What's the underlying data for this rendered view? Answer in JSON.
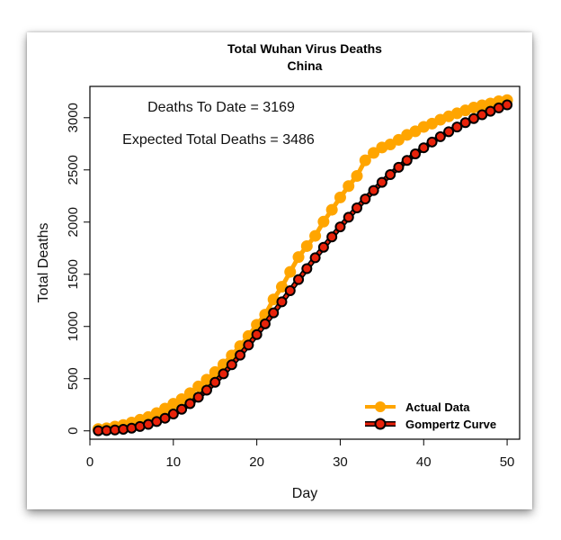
{
  "chart_data": {
    "type": "line",
    "title": "Total Wuhan Virus Deaths",
    "subtitle": "China",
    "xlabel": "Day",
    "ylabel": "Total Deaths",
    "xlim": [
      0,
      51.5
    ],
    "ylim": [
      -80,
      3300
    ],
    "xticks": [
      0,
      10,
      20,
      30,
      40,
      50
    ],
    "yticks": [
      0,
      500,
      1000,
      1500,
      2000,
      2500,
      3000
    ],
    "grid": false,
    "legend_position": "bottom-right",
    "annotations": [
      "Deaths To Date = 3169",
      "Expected Total Deaths = 3486"
    ],
    "x": [
      1,
      2,
      3,
      4,
      5,
      6,
      7,
      8,
      9,
      10,
      11,
      12,
      13,
      14,
      15,
      16,
      17,
      18,
      19,
      20,
      21,
      22,
      23,
      24,
      25,
      26,
      27,
      28,
      29,
      30,
      31,
      32,
      33,
      34,
      35,
      36,
      37,
      38,
      39,
      40,
      41,
      42,
      43,
      44,
      45,
      46,
      47,
      48,
      49,
      50
    ],
    "series": [
      {
        "name": "Actual Data",
        "color": "#FFA500",
        "style": "points-and-line",
        "values": [
          17,
          25,
          41,
          56,
          80,
          106,
          132,
          170,
          213,
          259,
          304,
          361,
          425,
          490,
          563,
          636,
          722,
          811,
          908,
          1016,
          1113,
          1259,
          1380,
          1523,
          1665,
          1770,
          1868,
          2004,
          2118,
          2236,
          2345,
          2442,
          2592,
          2663,
          2715,
          2744,
          2788,
          2835,
          2870,
          2912,
          2943,
          2981,
          3013,
          3042,
          3070,
          3097,
          3119,
          3136,
          3158,
          3169
        ]
      },
      {
        "name": "Gompertz Curve",
        "color": "#E8220A",
        "outline": "#000000",
        "style": "points-and-line",
        "values": [
          1,
          3,
          8,
          15,
          26,
          42,
          62,
          89,
          121,
          161,
          207,
          261,
          322,
          390,
          465,
          546,
          633,
          725,
          822,
          922,
          1025,
          1130,
          1236,
          1343,
          1449,
          1554,
          1658,
          1759,
          1858,
          1954,
          2046,
          2136,
          2221,
          2303,
          2381,
          2455,
          2525,
          2591,
          2653,
          2712,
          2767,
          2818,
          2866,
          2911,
          2953,
          2992,
          3028,
          3062,
          3094,
          3123
        ]
      }
    ]
  }
}
